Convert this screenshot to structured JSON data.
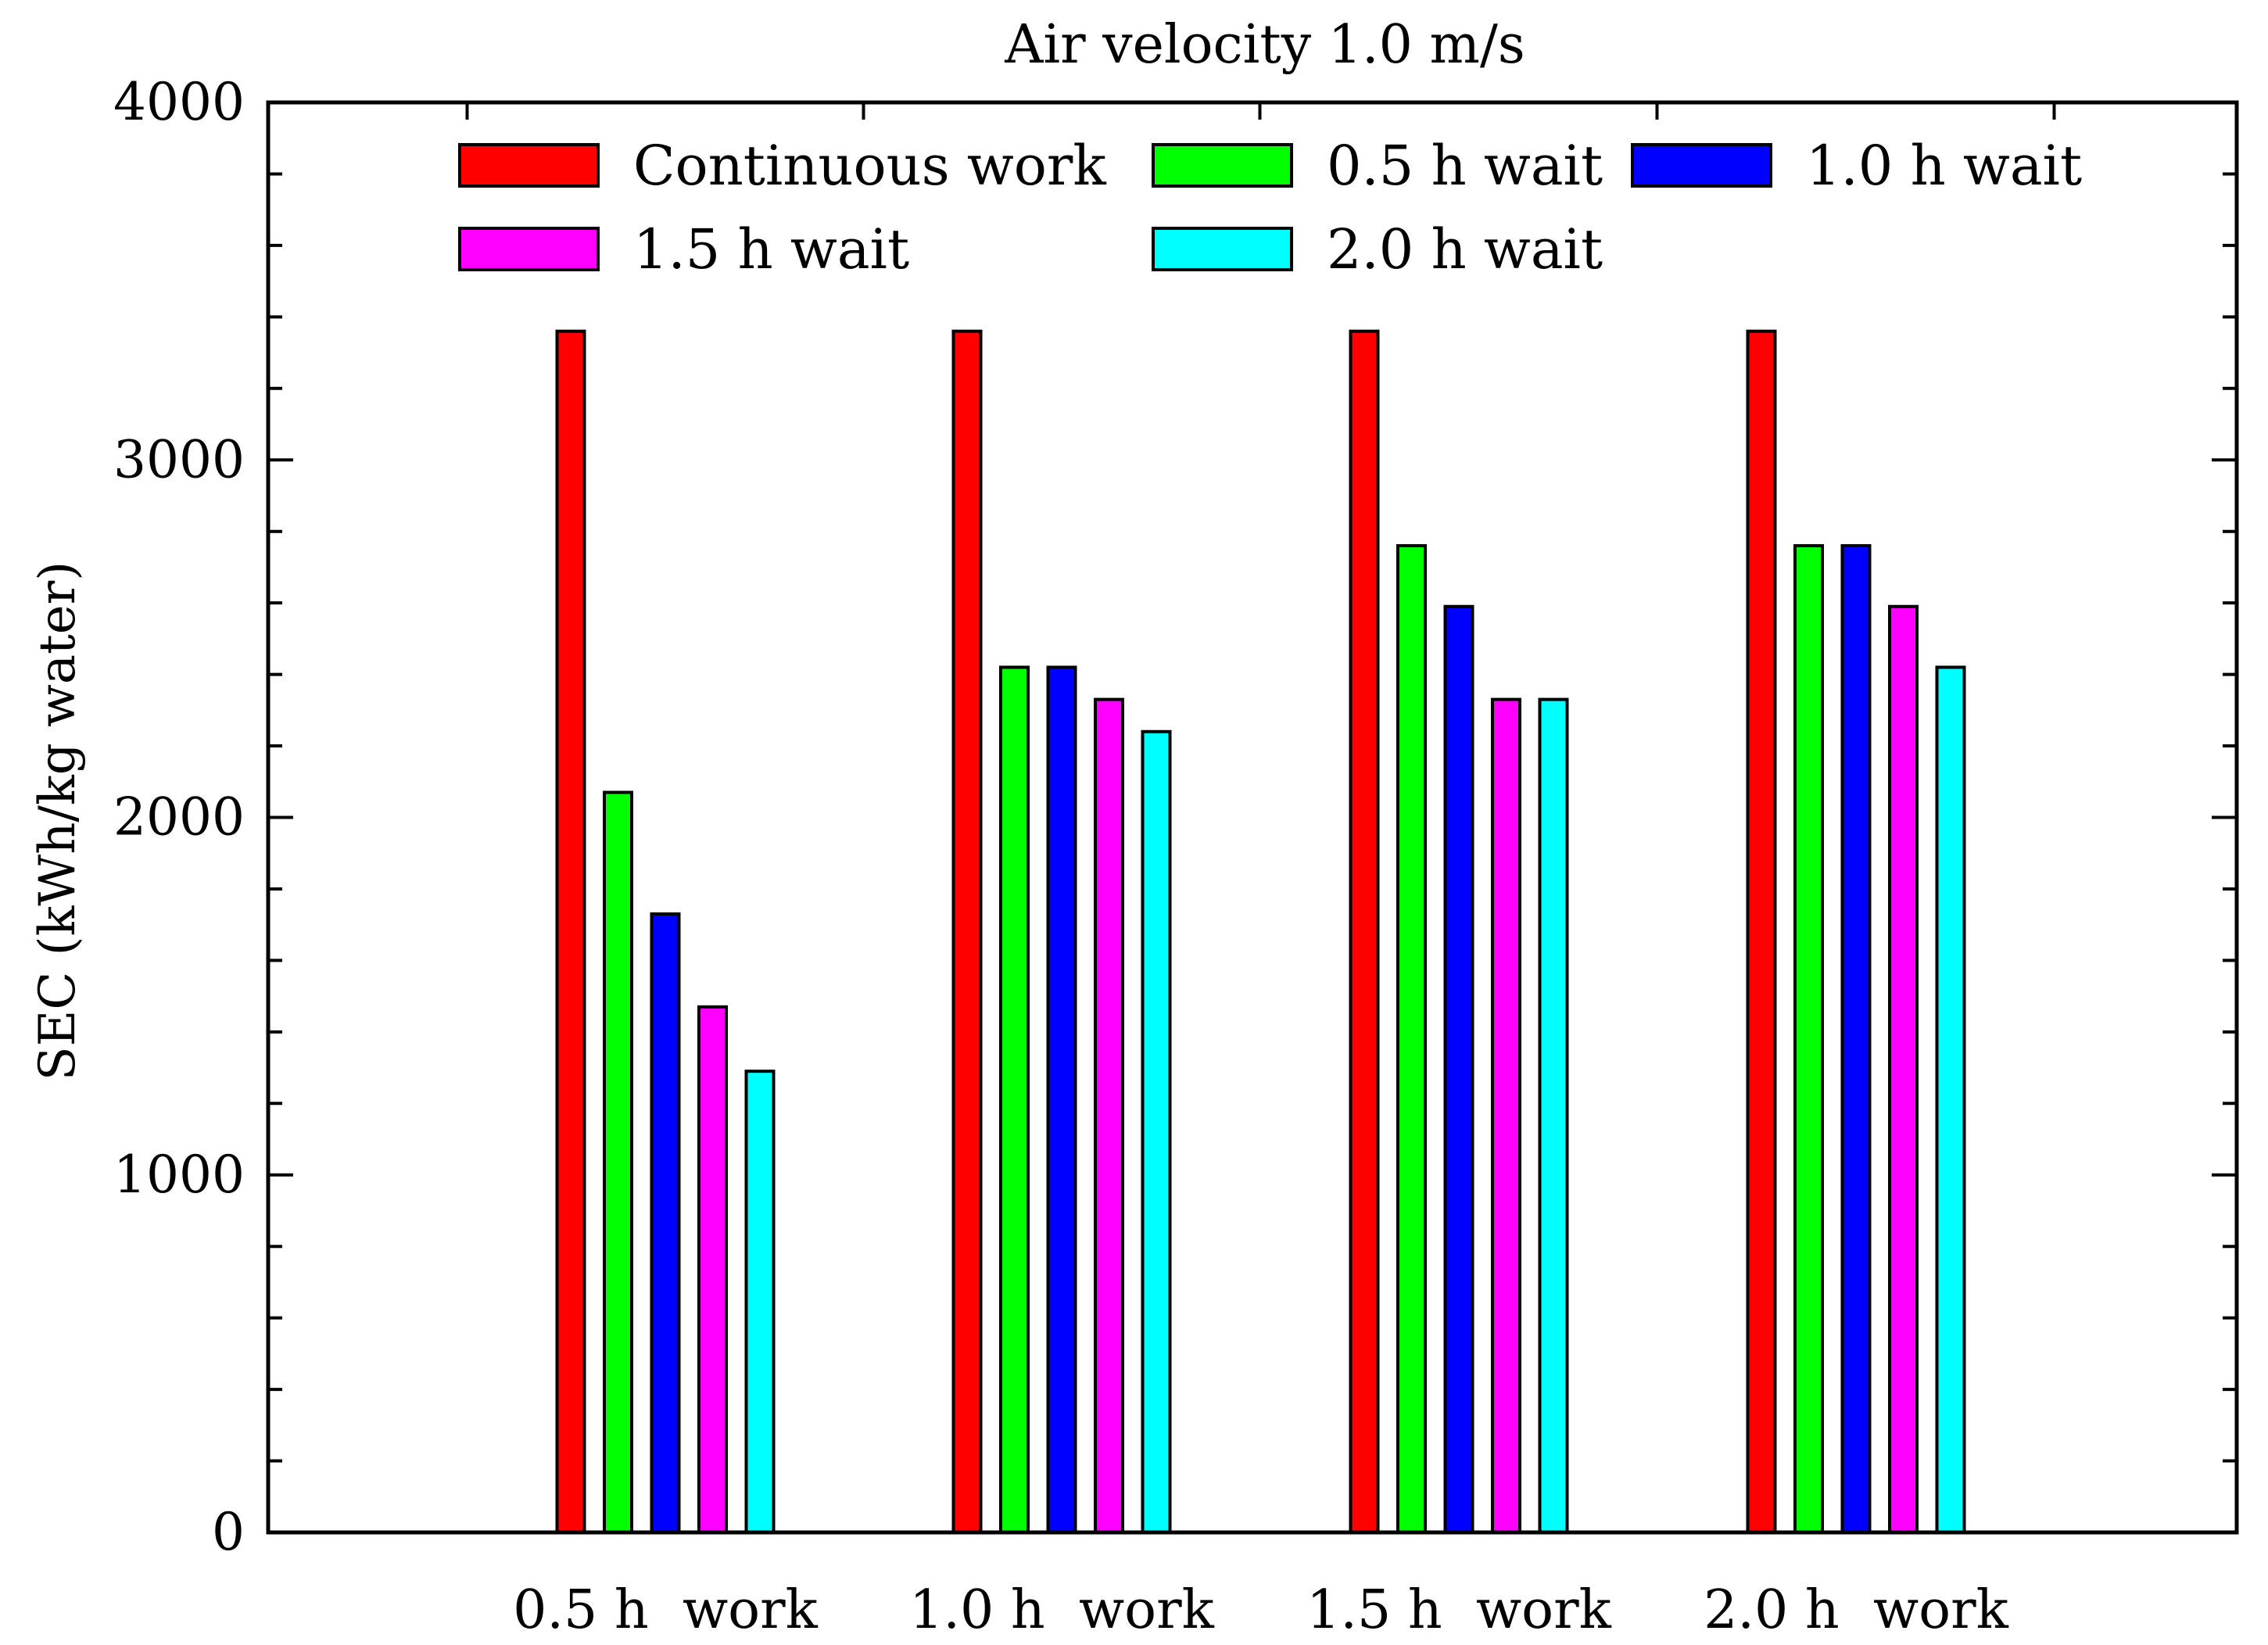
{
  "chart_data": {
    "type": "bar",
    "title": "Air velocity 1.0 m/s",
    "xlabel": "",
    "ylabel": "SEC (kWh/kg water)",
    "ylim": [
      0,
      4000
    ],
    "yticks": [
      "0",
      "1000",
      "2000",
      "3000",
      "4000"
    ],
    "categories": [
      "0.5 h  work",
      "1.0 h  work",
      "1.5 h  work",
      "2.0 h  work"
    ],
    "series": [
      {
        "name": "Continuous work",
        "color": "#ff0000",
        "values": [
          3360,
          3360,
          3360,
          3360
        ]
      },
      {
        "name": "0.5 h wait",
        "color": "#00ff00",
        "values": [
          2070,
          2420,
          2760,
          2760
        ]
      },
      {
        "name": "1.0 h wait",
        "color": "#0000ff",
        "values": [
          1730,
          2420,
          2590,
          2760
        ]
      },
      {
        "name": "1.5 h wait",
        "color": "#ff00ff",
        "values": [
          1470,
          2330,
          2330,
          2590
        ]
      },
      {
        "name": "2.0 h wait",
        "color": "#00ffff",
        "values": [
          1290,
          2240,
          2330,
          2420
        ]
      }
    ],
    "grid": false,
    "legend_position": "top"
  }
}
